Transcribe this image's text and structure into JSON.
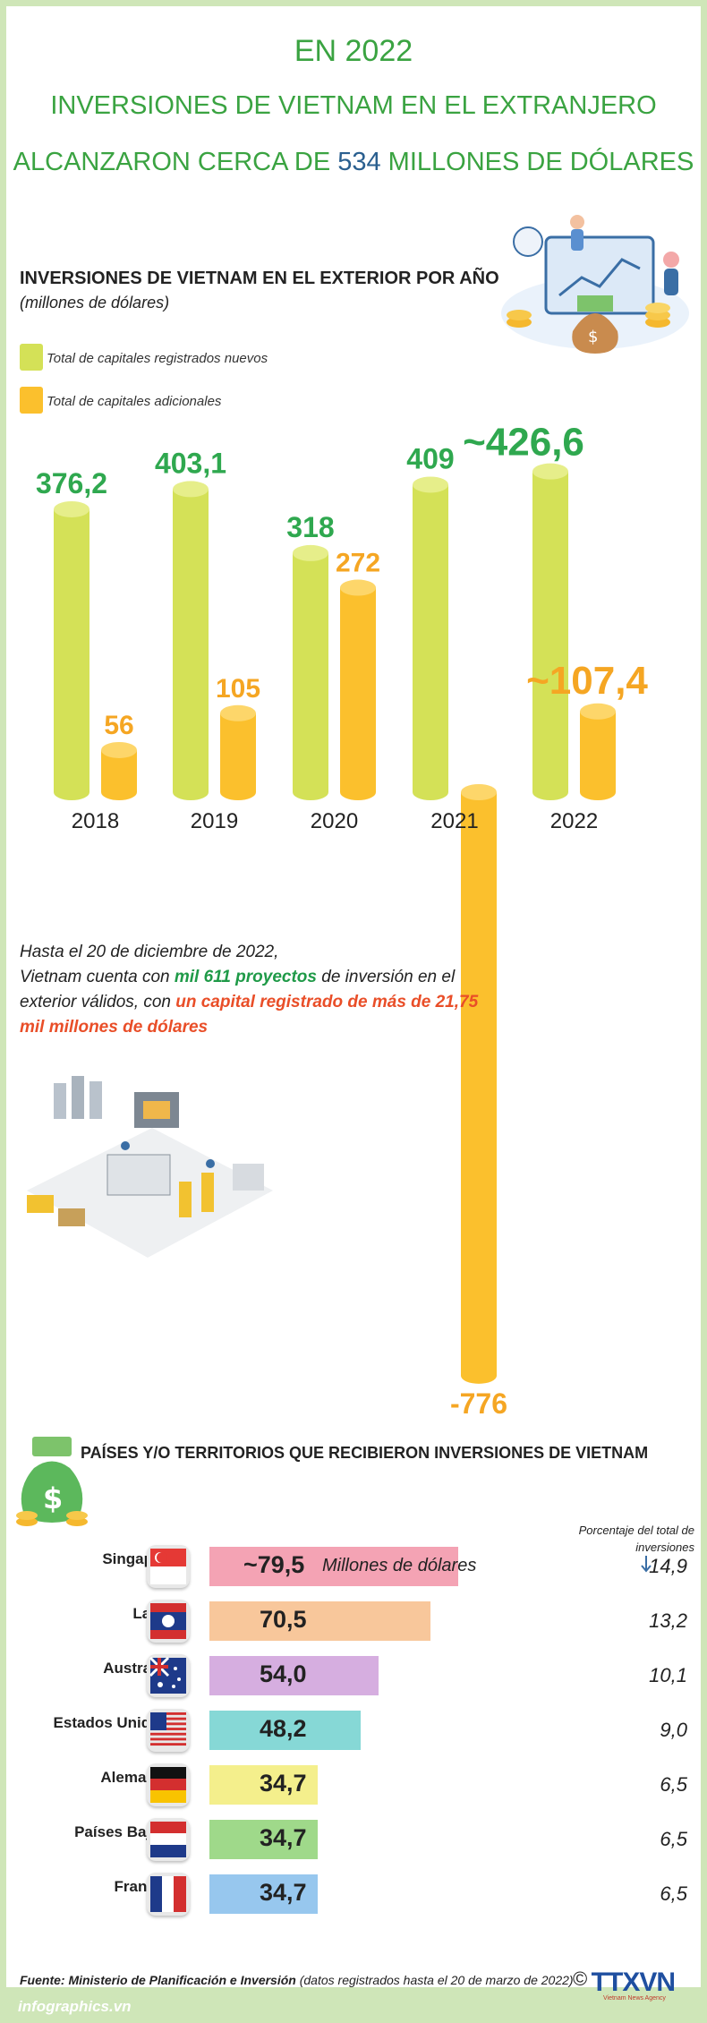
{
  "header": {
    "line1": "EN 2022",
    "line2": "INVERSIONES DE VIETNAM EN EL EXTRANJERO",
    "line3_pre": "ALCANZARON CERCA DE ",
    "line3_num": "534",
    "line3_post": " MILLONES DE DÓLARES"
  },
  "colors": {
    "green_title": "#3aa341",
    "num_blue": "#2a5f8f",
    "bar_green": "#d4e157",
    "bar_orange": "#fbc02d",
    "label_green": "#2fa84f",
    "label_orange": "#f5a623"
  },
  "chart_data": [
    {
      "type": "bar",
      "title": "INVERSIONES DE VIETNAM EN EL EXTERIOR POR AÑO",
      "subtitle": "(millones de dólares)",
      "categories": [
        "2018",
        "2019",
        "2020",
        "2021",
        "2022"
      ],
      "series": [
        {
          "name": "Total de capitales registrados nuevos",
          "values": [
            376.2,
            403.1,
            318,
            409,
            426.6
          ],
          "labels": [
            "376,2",
            "403,1",
            "318",
            "409",
            "~426,6"
          ]
        },
        {
          "name": "Total de capitales adicionales",
          "values": [
            56,
            105,
            272,
            -776,
            107.4
          ],
          "labels": [
            "56",
            "105",
            "272",
            "-776",
            "~107,4"
          ]
        }
      ],
      "legend": "top-left"
    },
    {
      "type": "bar",
      "orientation": "horizontal",
      "title": "PAÍSES Y/O TERRITORIOS QUE RECIBIERON INVERSIONES DE VIETNAM",
      "unit_label": "Millones de dólares",
      "pct_header": "Porcentaje del total de inversiones",
      "categories": [
        "Singapur",
        "Laos",
        "Australia",
        "Estados Unidos",
        "Alemania",
        "Países Bajos",
        "Francia"
      ],
      "values": [
        79.5,
        70.5,
        54.0,
        48.2,
        34.7,
        34.7,
        34.7
      ],
      "labels": [
        "~79,5",
        "70,5",
        "54,0",
        "48,2",
        "34,7",
        "34,7",
        "34,7"
      ],
      "percent_labels": [
        "14,9",
        "13,2",
        "10,1",
        "9,0",
        "6,5",
        "6,5",
        "6,5"
      ],
      "bar_colors": [
        "#f4a3b4",
        "#f8c79b",
        "#d6aee0",
        "#86d8d6",
        "#f4ef8c",
        "#9fd98a",
        "#97c7ee"
      ],
      "flags": [
        "singapore-flag-icon",
        "laos-flag-icon",
        "australia-flag-icon",
        "usa-flag-icon",
        "germany-flag-icon",
        "netherlands-flag-icon",
        "france-flag-icon"
      ]
    }
  ],
  "note": {
    "t1": "Hasta el 20 de diciembre de 2022,",
    "t2": "Vietnam cuenta con ",
    "t3": "mil 611 proyectos",
    "t4": " de inversión en el exterior válidos, con ",
    "t5": "un capital registrado de más de 21,75 mil millones de dólares"
  },
  "footer": {
    "source_label": "Fuente: Ministerio de Planificación e Inversión",
    "source_note": " (datos registrados hasta el 20 de marzo de 2022)",
    "copyright": "©",
    "logo_text": "TTXVN",
    "logo_sub": "Vietnam News Agency",
    "site": "infographics.vn"
  }
}
